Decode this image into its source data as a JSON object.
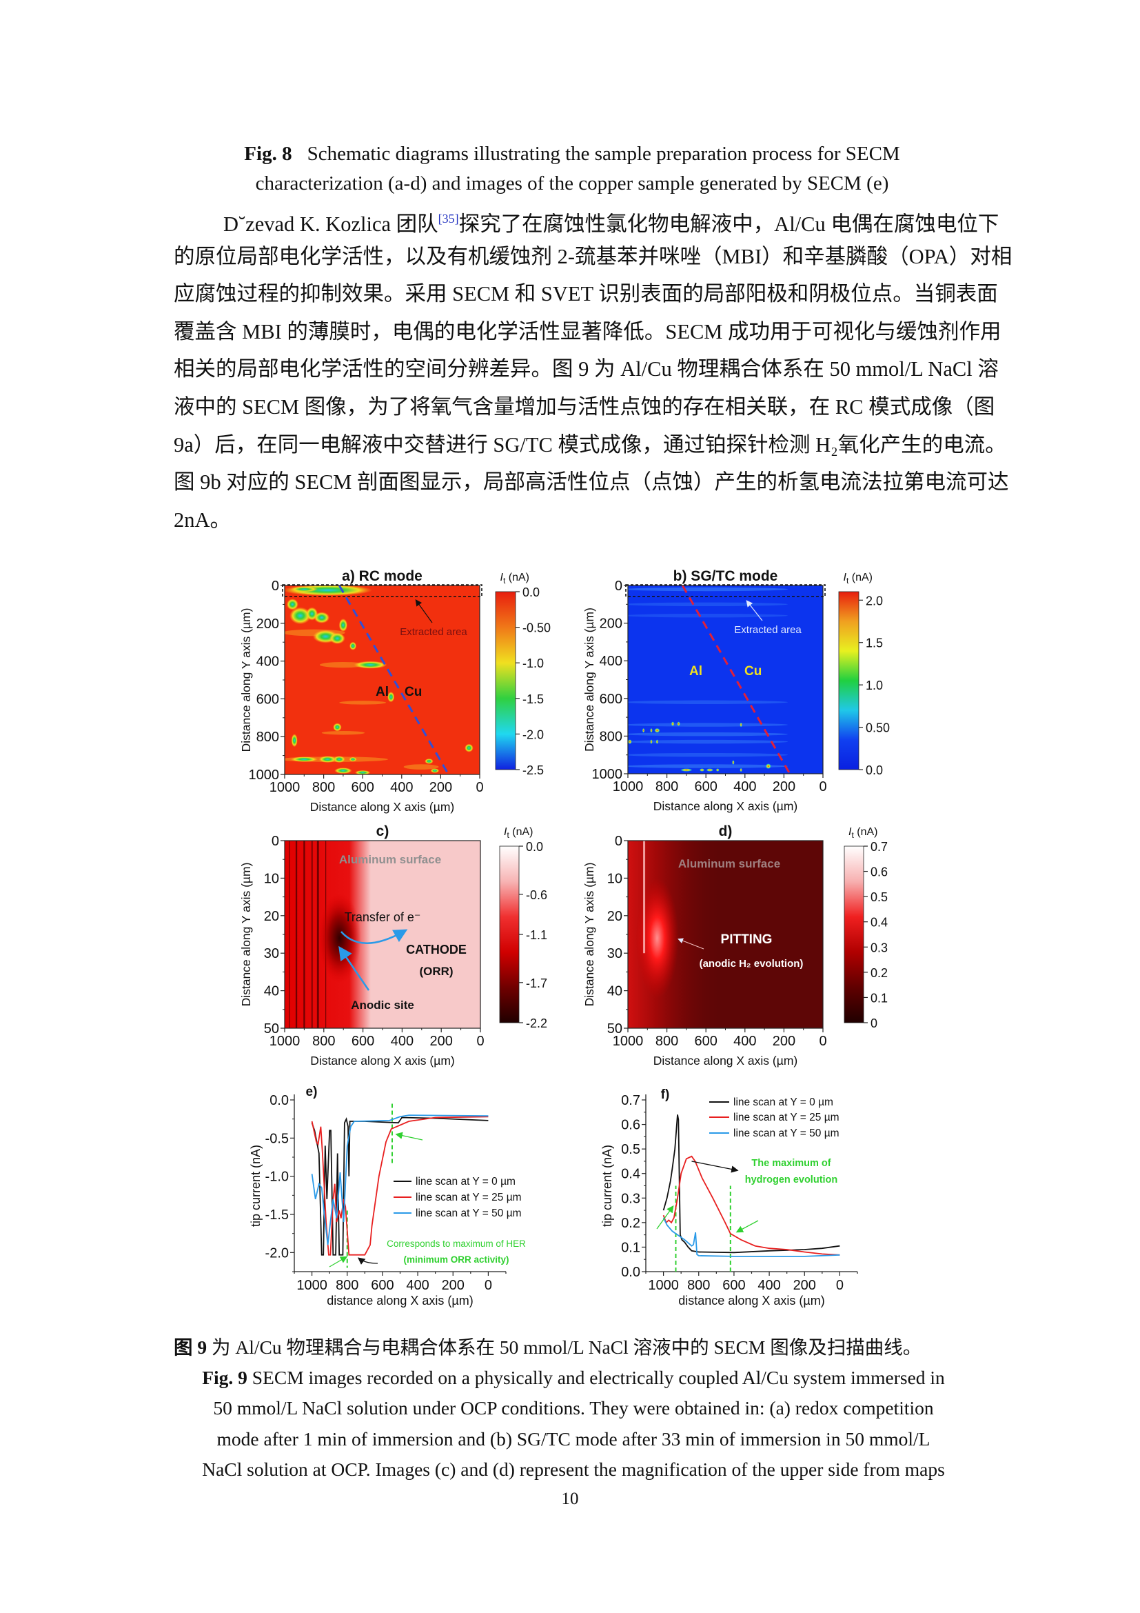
{
  "fig8_caption": {
    "label": "Fig. 8",
    "lines": [
      "Schematic diagrams illustrating the sample preparation process for SECM",
      "characterization (a-d) and images of the copper sample generated by SECM (e)"
    ]
  },
  "body": {
    "line0_pre": "D˘zevad K. Kozlica 团队",
    "line0_ref": "[35]",
    "line0_post": "探究了在腐蚀性氯化物电解液中，Al/Cu 电偶在腐蚀电位下",
    "lines": [
      "的原位局部电化学活性，以及有机缓蚀剂 2-巯基苯并咪唑（MBI）和辛基膦酸（OPA）对相",
      "应腐蚀过程的抑制效果。采用 SECM 和 SVET 识别表面的局部阳极和阴极位点。当铜表面",
      "覆盖含 MBI 的薄膜时，电偶的电化学活性显著降低。SECM 成功用于可视化与缓蚀剂作用",
      "相关的局部电化学活性的空间分辨差异。图 9 为 Al/Cu 物理耦合体系在 50 mmol/L NaCl 溶",
      "液中的 SECM 图像，为了将氧气含量增加与活性点蚀的存在相关联，在 RC 模式成像（图",
      "9a）后，在同一电解液中交替进行 SG/TC 模式成像，通过铂探针检测 H₂氧化产生的电流。",
      "图 9b 对应的 SECM 剖面图显示，局部高活性位点（点蚀）产生的析氢电流法拉第电流可达",
      "2nA。"
    ]
  },
  "fig9_caption": {
    "cn_label": "图 9",
    "cn_text": " 为 Al/Cu 物理耦合与电耦合体系在 50 mmol/L NaCl 溶液中的 SECM 图像及扫描曲线。",
    "en_label": "Fig. 9",
    "en_lines": [
      " SECM images recorded on a physically and electrically coupled Al/Cu system immersed in",
      "50 mmol/L NaCl solution under OCP conditions. They were obtained in: (a) redox competition",
      "mode after 1 min of immersion and (b) SG/TC mode after 33 min of immersion in 50 mmol/L",
      "NaCl solution at OCP. Images (c) and (d) represent the magnification of the upper side from maps"
    ]
  },
  "page_number": "10",
  "chart_data": [
    {
      "panel": "a",
      "type": "heatmap",
      "title": "a) RC mode",
      "xlabel": "Distance along X axis (µm)",
      "ylabel": "Distance along Y axis (µm)",
      "xlim": [
        1000,
        0
      ],
      "ylim": [
        0,
        1000
      ],
      "xticks": [
        "1000",
        "800",
        "600",
        "400",
        "200",
        "0"
      ],
      "yticks": [
        "0",
        "200",
        "400",
        "600",
        "800",
        "1000"
      ],
      "colorbar": {
        "symbol": "I",
        "sub": "t",
        "unit": " (nA)",
        "range": [
          0.0,
          -2.5
        ],
        "ticks": [
          "0.0",
          "-0.50",
          "-1.0",
          "-1.5",
          "-2.0",
          "-2.5"
        ],
        "colors": [
          "#e81e0e",
          "#f07818",
          "#f0e020",
          "#30d040",
          "#20d8f0",
          "#1020e0"
        ]
      },
      "background": "#f2300e",
      "boundary_color": "#3050d8",
      "annotations": [
        "Al",
        "Cu",
        "Extracted area"
      ]
    },
    {
      "panel": "b",
      "type": "heatmap",
      "title": "b) SG/TC mode",
      "xlabel": "Distance along X axis (µm)",
      "ylabel": "Distance along Y axis (µm)",
      "xlim": [
        1000,
        0
      ],
      "ylim": [
        0,
        1000
      ],
      "xticks": [
        "1000",
        "800",
        "600",
        "400",
        "200",
        "0"
      ],
      "yticks": [
        "0",
        "200",
        "400",
        "600",
        "800",
        "1000"
      ],
      "colorbar": {
        "symbol": "I",
        "sub": "t",
        "unit": " (nA)",
        "range": [
          2.1,
          0.0
        ],
        "ticks": [
          "2.0",
          "1.5",
          "1.0",
          "0.50",
          "0.0"
        ],
        "colors": [
          "#e81e0e",
          "#f0a020",
          "#e8f020",
          "#20d040",
          "#20c8e8",
          "#1040f0",
          "#0a20e0"
        ]
      },
      "background": "#0c34ee",
      "boundary_color": "#e0203a",
      "annotations": [
        "Al",
        "Cu",
        "Extracted area"
      ]
    },
    {
      "panel": "c",
      "type": "heatmap",
      "title": "c)",
      "xlabel": "Distance along X axis (µm)",
      "ylabel": "Distance along Y axis (µm)",
      "xlim": [
        1000,
        0
      ],
      "ylim": [
        0,
        50
      ],
      "xticks": [
        "1000",
        "800",
        "600",
        "400",
        "200",
        "0"
      ],
      "yticks": [
        "0",
        "10",
        "20",
        "30",
        "40",
        "50"
      ],
      "colorbar": {
        "symbol": "I",
        "sub": "t",
        "unit": " (nA)",
        "range": [
          0.0,
          -2.2
        ],
        "ticks": [
          "0.0",
          "-0.6",
          "-1.1",
          "-1.7",
          "-2.2"
        ],
        "colors": [
          "#ffffff",
          "#f7b4b4",
          "#f03030",
          "#d00000",
          "#700000",
          "#200000"
        ]
      },
      "background": "#f7c9c9",
      "annotations": [
        "Aluminum surface",
        "Transfer of e⁻",
        "CATHODE",
        "(ORR)",
        "Anodic site"
      ]
    },
    {
      "panel": "d",
      "type": "heatmap",
      "title": "d)",
      "xlabel": "Distance along X axis (µm)",
      "ylabel": "Distance along Y axis (µm)",
      "xlim": [
        1000,
        0
      ],
      "ylim": [
        0,
        50
      ],
      "xticks": [
        "1000",
        "800",
        "600",
        "400",
        "200",
        "0"
      ],
      "yticks": [
        "0",
        "10",
        "20",
        "30",
        "40",
        "50"
      ],
      "colorbar": {
        "symbol": "I",
        "sub": "t",
        "unit": " (nA)",
        "range": [
          0.7,
          0.0
        ],
        "ticks": [
          "0.7",
          "0.6",
          "0.5",
          "0.4",
          "0.3",
          "0.2",
          "0.1",
          "0"
        ],
        "colors": [
          "#ffffff",
          "#f7b0b0",
          "#f02020",
          "#b00000",
          "#600000",
          "#200000"
        ]
      },
      "background": "#5e0606",
      "annotations": [
        "Aluminum surface",
        "PITTING",
        "(anodic H₂ evolution)"
      ]
    },
    {
      "panel": "e",
      "type": "line",
      "title": "e)",
      "xlabel": "distance along X axis (µm)",
      "ylabel": "tip current (nA)",
      "xlim": [
        1100,
        -100
      ],
      "ylim": [
        -2.25,
        0.0
      ],
      "xticks": [
        "1000",
        "800",
        "600",
        "400",
        "200",
        "0"
      ],
      "yticks": [
        "0.0",
        "-0.5",
        "-1.0",
        "-1.5",
        "-2.0"
      ],
      "legend": "center-right",
      "series": [
        {
          "name": "line scan at Y = 0 µm",
          "color": "#111111",
          "x": [
            1000,
            985,
            960,
            945,
            935,
            925,
            915,
            900,
            893,
            880,
            865,
            855,
            845,
            825,
            815,
            805,
            795,
            790,
            785,
            700,
            510,
            490,
            300,
            0
          ],
          "y": [
            -0.3,
            -0.4,
            -0.7,
            -2.03,
            -2.03,
            -0.6,
            -1.3,
            -0.4,
            -0.4,
            -2.03,
            -2.03,
            -0.7,
            -2.03,
            -2.03,
            -0.3,
            -0.25,
            -0.35,
            -1.0,
            -0.28,
            -0.28,
            -0.3,
            -0.23,
            -0.24,
            -0.27
          ]
        },
        {
          "name": "line scan at Y = 25 µm",
          "color": "#e82020",
          "x": [
            1000,
            975,
            965,
            950,
            940,
            920,
            905,
            895,
            880,
            870,
            860,
            845,
            835,
            820,
            810,
            790,
            700,
            670,
            660,
            620,
            580,
            550,
            450,
            300,
            0
          ],
          "y": [
            -0.28,
            -0.55,
            -0.58,
            -0.35,
            -0.7,
            -1.6,
            -2.03,
            -2.03,
            -1.3,
            -1.1,
            -1.6,
            -1.45,
            -1.55,
            -1.3,
            -1.4,
            -2.03,
            -2.03,
            -1.9,
            -1.65,
            -1.0,
            -0.55,
            -0.38,
            -0.28,
            -0.23,
            -0.22
          ]
        },
        {
          "name": "line scan at Y = 50 µm",
          "color": "#2a9ae8",
          "x": [
            1000,
            980,
            960,
            945,
            930,
            910,
            895,
            880,
            860,
            840,
            820,
            800,
            780,
            760,
            560,
            500,
            450,
            0
          ],
          "y": [
            -0.97,
            -1.3,
            -1.1,
            -1.15,
            -1.5,
            -1.9,
            -1.6,
            -1.3,
            -1.55,
            -0.95,
            -1.6,
            -0.6,
            -0.35,
            -0.28,
            -0.27,
            -0.22,
            -0.2,
            -0.21
          ]
        }
      ],
      "markers": [
        {
          "x": 800,
          "y_range": [
            -1.45,
            -2.2
          ]
        },
        {
          "x": 545,
          "y_range": [
            -0.05,
            -0.85
          ]
        }
      ],
      "marker_color": "#30d030",
      "annotations": [
        "Corresponds to maximum of HER",
        "(minimum ORR activity)"
      ]
    },
    {
      "panel": "f",
      "type": "line",
      "title": "f)",
      "xlabel": "distance along X axis (µm)",
      "ylabel": "tip current (nA)",
      "xlim": [
        1100,
        -100
      ],
      "ylim": [
        0.0,
        0.7
      ],
      "xticks": [
        "1000",
        "800",
        "600",
        "400",
        "200",
        "0"
      ],
      "yticks": [
        "0.0",
        "0.1",
        "0.2",
        "0.3",
        "0.4",
        "0.5",
        "0.6",
        "0.7"
      ],
      "legend": "top-right",
      "series": [
        {
          "name": "line scan at Y = 0 µm",
          "color": "#111111",
          "x": [
            1000,
            980,
            960,
            950,
            935,
            920,
            915,
            905,
            895,
            880,
            860,
            840,
            800,
            600,
            400,
            200,
            100,
            0
          ],
          "y": [
            0.25,
            0.3,
            0.37,
            0.42,
            0.5,
            0.64,
            0.62,
            0.15,
            0.13,
            0.12,
            0.1,
            0.085,
            0.08,
            0.078,
            0.085,
            0.09,
            0.095,
            0.105
          ]
        },
        {
          "name": "line scan at Y = 25 µm",
          "color": "#e82020",
          "x": [
            1000,
            985,
            970,
            955,
            940,
            920,
            900,
            870,
            840,
            820,
            780,
            720,
            650,
            620,
            560,
            480,
            400,
            300,
            200,
            100,
            0
          ],
          "y": [
            0.23,
            0.2,
            0.21,
            0.2,
            0.22,
            0.3,
            0.4,
            0.46,
            0.47,
            0.45,
            0.38,
            0.3,
            0.2,
            0.155,
            0.13,
            0.105,
            0.095,
            0.09,
            0.08,
            0.072,
            0.068
          ]
        },
        {
          "name": "line scan at Y = 50 µm",
          "color": "#2a9ae8",
          "x": [
            1000,
            980,
            950,
            920,
            880,
            840,
            830,
            818,
            810,
            800,
            600,
            400,
            200,
            0
          ],
          "y": [
            0.22,
            0.19,
            0.165,
            0.15,
            0.13,
            0.105,
            0.11,
            0.16,
            0.07,
            0.065,
            0.062,
            0.062,
            0.062,
            0.068
          ]
        }
      ],
      "markers": [
        {
          "x": 930,
          "y_range": [
            0.0,
            0.35
          ]
        },
        {
          "x": 620,
          "y_range": [
            0.0,
            0.35
          ]
        }
      ],
      "marker_color": "#30d030",
      "annotations": [
        "The maximum of",
        "hydrogen evolution"
      ]
    }
  ]
}
